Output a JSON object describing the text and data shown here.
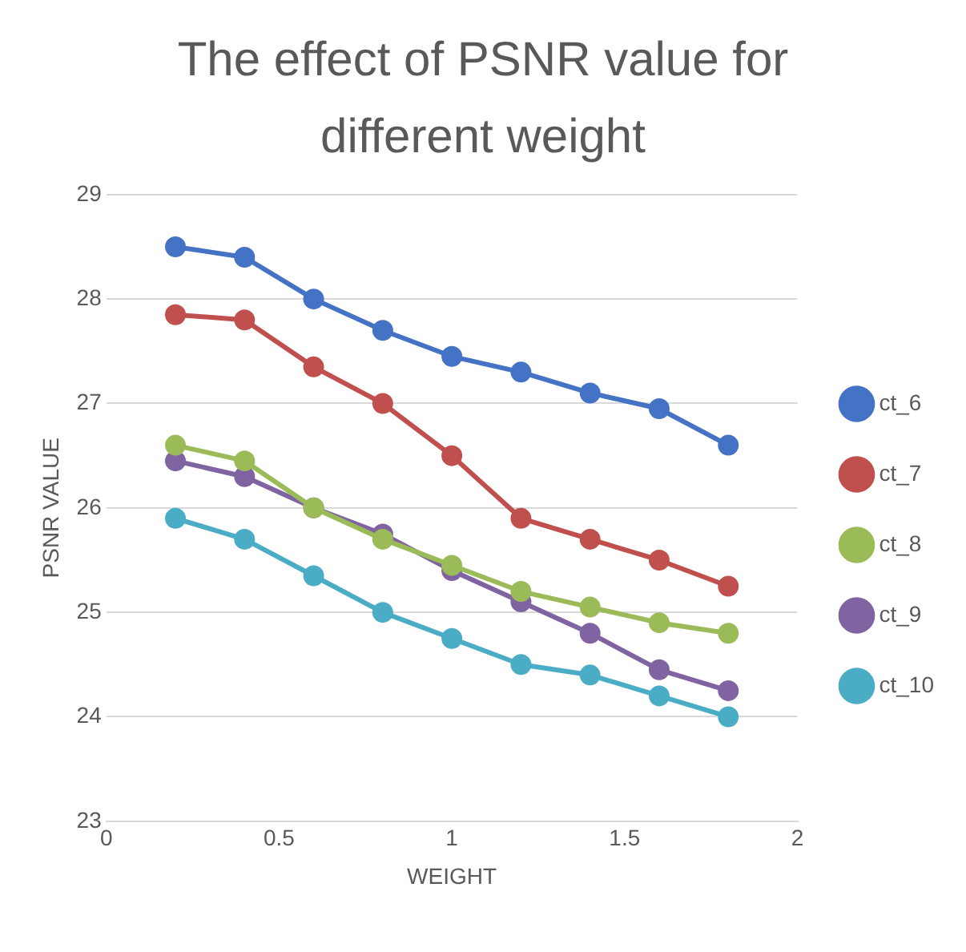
{
  "chart_data": {
    "type": "line",
    "title": "The effect of PSNR value for different weight",
    "xlabel": "WEIGHT",
    "ylabel": "PSNR VALUE",
    "x": [
      0.2,
      0.4,
      0.6,
      0.8,
      1.0,
      1.2,
      1.4,
      1.6,
      1.8
    ],
    "series": [
      {
        "name": "ct_6",
        "color": "#4472c4",
        "values": [
          28.5,
          28.4,
          28.0,
          27.7,
          27.45,
          27.3,
          27.1,
          26.95,
          26.6
        ]
      },
      {
        "name": "ct_7",
        "color": "#c0504d",
        "values": [
          27.85,
          27.8,
          27.35,
          27.0,
          26.5,
          25.9,
          25.7,
          25.5,
          25.25
        ]
      },
      {
        "name": "ct_8",
        "color": "#9bbb59",
        "values": [
          26.6,
          26.45,
          26.0,
          25.7,
          25.45,
          25.2,
          25.05,
          24.9,
          24.8
        ]
      },
      {
        "name": "ct_9",
        "color": "#8064a2",
        "values": [
          26.45,
          26.3,
          26.0,
          25.75,
          25.4,
          25.1,
          24.8,
          24.45,
          24.25
        ]
      },
      {
        "name": "ct_10",
        "color": "#4bacc6",
        "values": [
          25.9,
          25.7,
          25.35,
          25.0,
          24.75,
          24.5,
          24.4,
          24.2,
          24.0
        ]
      }
    ],
    "xlim": [
      0,
      2
    ],
    "xticks": [
      0,
      0.5,
      1,
      1.5,
      2
    ],
    "ylim": [
      23,
      29
    ],
    "yticks": [
      23,
      24,
      25,
      26,
      27,
      28,
      29
    ],
    "grid": "y",
    "legend": "right",
    "marker": "circle",
    "line_style": "solid"
  }
}
